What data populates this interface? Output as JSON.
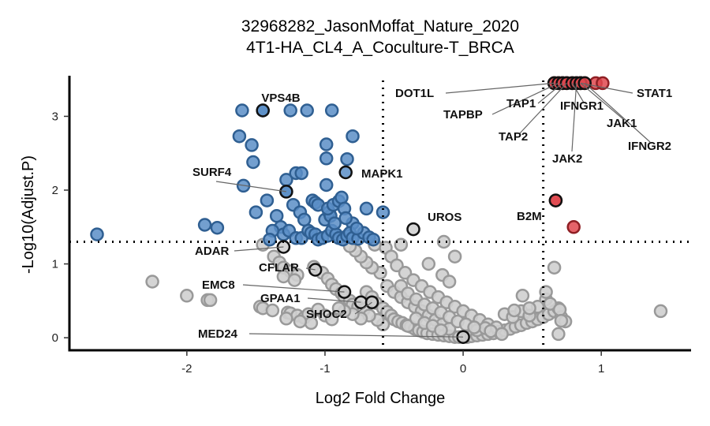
{
  "chart_data": {
    "type": "scatter",
    "title": "32968282_JasonMoffat_Nature_2020",
    "subtitle": "4T1-HA_CL4_A_Coculture-T_BRCA",
    "xlabel": "Log2 Fold Change",
    "ylabel": "-Log10(Adjust.P)",
    "xlim": [
      -2.85,
      1.65
    ],
    "ylim": [
      -0.17,
      3.55
    ],
    "x_ticks": [
      -2,
      -1,
      0,
      1
    ],
    "y_ticks": [
      0,
      1,
      2,
      3
    ],
    "thresholds": {
      "fc_low": -0.58,
      "fc_high": 0.58,
      "p": 1.3
    },
    "grid": false,
    "legend": "none",
    "colors": {
      "down": "#5b8ec7",
      "down_edge": "#2f5f92",
      "up": "#e0484f",
      "up_edge": "#8f1f24",
      "ns": "#cfcfcf",
      "ns_edge": "#999999",
      "highlight_edge": "#111111",
      "line": "#000000",
      "connector": "#666666"
    },
    "series": [
      {
        "group": "down",
        "points": [
          [
            -2.65,
            1.4
          ],
          [
            -1.87,
            1.53
          ],
          [
            -1.78,
            1.49
          ],
          [
            -1.6,
            3.08
          ],
          [
            -1.45,
            3.08
          ],
          [
            -1.25,
            3.08
          ],
          [
            -1.13,
            3.08
          ],
          [
            -0.95,
            3.08
          ],
          [
            -1.62,
            2.73
          ],
          [
            -1.53,
            2.61
          ],
          [
            -1.52,
            2.38
          ],
          [
            -1.59,
            2.06
          ],
          [
            -1.5,
            1.7
          ],
          [
            -1.42,
            1.86
          ],
          [
            -1.35,
            1.65
          ],
          [
            -1.28,
            2.14
          ],
          [
            -1.28,
            1.98
          ],
          [
            -1.21,
            2.23
          ],
          [
            -1.17,
            2.23
          ],
          [
            -1.23,
            1.8
          ],
          [
            -1.18,
            1.7
          ],
          [
            -1.09,
            1.86
          ],
          [
            -1.07,
            1.83
          ],
          [
            -1.05,
            1.8
          ],
          [
            -1.0,
            1.6
          ],
          [
            -0.97,
            1.7
          ],
          [
            -0.96,
            1.65
          ],
          [
            -0.98,
            1.75
          ],
          [
            -0.94,
            1.8
          ],
          [
            -0.9,
            1.85
          ],
          [
            -0.88,
            1.9
          ],
          [
            -0.86,
            1.75
          ],
          [
            -0.99,
            2.62
          ],
          [
            -0.99,
            2.43
          ],
          [
            -0.99,
            2.07
          ],
          [
            -0.84,
            2.42
          ],
          [
            -0.8,
            2.73
          ],
          [
            -0.8,
            1.55
          ],
          [
            -0.7,
            1.75
          ],
          [
            -0.58,
            1.7
          ],
          [
            -1.32,
            1.5
          ],
          [
            -1.3,
            1.4
          ],
          [
            -1.26,
            1.45
          ],
          [
            -1.21,
            1.35
          ],
          [
            -1.17,
            1.35
          ],
          [
            -1.12,
            1.45
          ],
          [
            -1.1,
            1.42
          ],
          [
            -1.07,
            1.4
          ],
          [
            -1.05,
            1.33
          ],
          [
            -1.02,
            1.35
          ],
          [
            -0.98,
            1.38
          ],
          [
            -0.95,
            1.45
          ],
          [
            -0.92,
            1.4
          ],
          [
            -0.9,
            1.35
          ],
          [
            -0.87,
            1.33
          ],
          [
            -0.84,
            1.38
          ],
          [
            -0.82,
            1.42
          ],
          [
            -0.8,
            1.35
          ],
          [
            -0.76,
            1.34
          ],
          [
            -0.72,
            1.42
          ],
          [
            -0.68,
            1.36
          ],
          [
            -0.65,
            1.33
          ],
          [
            -1.38,
            1.45
          ],
          [
            -1.4,
            1.33
          ],
          [
            -1.15,
            1.6
          ],
          [
            -0.93,
            1.55
          ],
          [
            -0.85,
            1.62
          ],
          [
            -0.77,
            1.48
          ]
        ]
      },
      {
        "group": "up",
        "points": [
          [
            0.66,
            3.45
          ],
          [
            0.69,
            3.45
          ],
          [
            0.72,
            3.45
          ],
          [
            0.75,
            3.45
          ],
          [
            0.79,
            3.45
          ],
          [
            0.82,
            3.45
          ],
          [
            0.85,
            3.45
          ],
          [
            0.88,
            3.45
          ],
          [
            0.96,
            3.45
          ],
          [
            1.01,
            3.45
          ],
          [
            0.67,
            1.86
          ],
          [
            0.8,
            1.5
          ]
        ]
      },
      {
        "group": "ns",
        "points": [
          [
            -2.25,
            0.76
          ],
          [
            -2.0,
            0.57
          ],
          [
            -1.85,
            0.51
          ],
          [
            -1.83,
            0.51
          ],
          [
            -1.47,
            0.42
          ],
          [
            -1.45,
            0.4
          ],
          [
            -1.38,
            0.37
          ],
          [
            -1.27,
            0.34
          ],
          [
            -1.25,
            0.33
          ],
          [
            -1.2,
            0.3
          ],
          [
            -1.15,
            0.27
          ],
          [
            -1.12,
            0.32
          ],
          [
            -1.05,
            0.38
          ],
          [
            -1.0,
            0.3
          ],
          [
            -0.95,
            0.25
          ],
          [
            -1.45,
            1.26
          ],
          [
            -1.37,
            1.1
          ],
          [
            -1.33,
            1.02
          ],
          [
            -1.3,
            0.95
          ],
          [
            -1.25,
            0.9
          ],
          [
            -1.2,
            0.85
          ],
          [
            -1.3,
            0.83
          ],
          [
            -1.22,
            0.78
          ],
          [
            -1.08,
            0.96
          ],
          [
            -1.02,
            0.88
          ],
          [
            -0.98,
            0.8
          ],
          [
            -0.95,
            0.72
          ],
          [
            -0.92,
            0.66
          ],
          [
            -0.88,
            0.6
          ],
          [
            -0.86,
            0.55
          ],
          [
            -0.82,
            0.5
          ],
          [
            -0.8,
            0.45
          ],
          [
            -0.76,
            0.42
          ],
          [
            -0.72,
            0.38
          ],
          [
            -0.7,
            0.62
          ],
          [
            -0.66,
            0.55
          ],
          [
            -0.63,
            0.47
          ],
          [
            -0.58,
            0.4
          ],
          [
            -0.55,
            0.35
          ],
          [
            -0.52,
            0.3
          ],
          [
            -0.5,
            0.25
          ],
          [
            -0.47,
            0.22
          ],
          [
            -0.44,
            0.2
          ],
          [
            -0.41,
            0.17
          ],
          [
            -0.38,
            0.15
          ],
          [
            -0.35,
            0.12
          ],
          [
            -0.32,
            0.1
          ],
          [
            -0.29,
            0.08
          ],
          [
            -0.26,
            0.06
          ],
          [
            -0.22,
            0.05
          ],
          [
            -0.18,
            0.04
          ],
          [
            -0.14,
            0.03
          ],
          [
            -0.1,
            0.02
          ],
          [
            -0.06,
            0.01
          ],
          [
            -0.03,
            0.01
          ],
          [
            0.0,
            0.01
          ],
          [
            0.03,
            0.01
          ],
          [
            0.06,
            0.02
          ],
          [
            0.1,
            0.03
          ],
          [
            0.14,
            0.04
          ],
          [
            0.18,
            0.05
          ],
          [
            0.22,
            0.06
          ],
          [
            0.26,
            0.08
          ],
          [
            0.3,
            0.1
          ],
          [
            0.34,
            0.12
          ],
          [
            0.38,
            0.15
          ],
          [
            0.42,
            0.17
          ],
          [
            0.46,
            0.2
          ],
          [
            0.5,
            0.22
          ],
          [
            0.54,
            0.25
          ],
          [
            0.58,
            0.28
          ],
          [
            0.62,
            0.32
          ],
          [
            0.66,
            0.36
          ],
          [
            0.69,
            0.4
          ],
          [
            0.71,
            0.28
          ],
          [
            0.74,
            0.22
          ],
          [
            0.6,
            0.52
          ],
          [
            0.63,
            0.46
          ],
          [
            -0.55,
            0.7
          ],
          [
            -0.5,
            0.62
          ],
          [
            -0.45,
            0.55
          ],
          [
            -0.4,
            0.48
          ],
          [
            -0.35,
            0.42
          ],
          [
            -0.3,
            0.36
          ],
          [
            -0.25,
            0.3
          ],
          [
            -0.2,
            0.24
          ],
          [
            -0.15,
            0.18
          ],
          [
            -0.1,
            0.12
          ],
          [
            -0.6,
            0.88
          ],
          [
            -0.66,
            0.95
          ],
          [
            -0.7,
            1.02
          ],
          [
            -0.74,
            1.1
          ],
          [
            -0.78,
            1.18
          ],
          [
            -0.82,
            1.24
          ],
          [
            -0.64,
            1.26
          ],
          [
            -0.56,
            1.22
          ],
          [
            -0.52,
            1.1
          ],
          [
            -0.48,
            0.98
          ],
          [
            -0.42,
            0.88
          ],
          [
            -0.36,
            0.78
          ],
          [
            -0.3,
            0.7
          ],
          [
            -0.24,
            0.62
          ],
          [
            -0.18,
            0.55
          ],
          [
            -0.12,
            0.48
          ],
          [
            -0.06,
            0.42
          ],
          [
            0.0,
            0.36
          ],
          [
            0.06,
            0.3
          ],
          [
            0.12,
            0.24
          ],
          [
            0.18,
            0.18
          ],
          [
            0.24,
            0.14
          ],
          [
            0.3,
            0.32
          ],
          [
            0.36,
            0.28
          ],
          [
            0.42,
            0.36
          ],
          [
            0.48,
            0.3
          ],
          [
            0.54,
            0.42
          ],
          [
            0.6,
            0.62
          ],
          [
            -0.14,
            1.3
          ],
          [
            -0.06,
            1.1
          ],
          [
            -0.25,
            1.0
          ],
          [
            -0.15,
            0.85
          ],
          [
            -0.1,
            0.76
          ],
          [
            0.43,
            0.57
          ],
          [
            0.37,
            0.37
          ],
          [
            0.48,
            0.4
          ],
          [
            0.66,
            0.95
          ],
          [
            0.7,
            0.38
          ],
          [
            0.71,
            0.23
          ],
          [
            0.69,
            0.05
          ],
          [
            1.43,
            0.36
          ],
          [
            -0.4,
            0.16
          ],
          [
            -0.34,
            0.26
          ],
          [
            -0.28,
            0.2
          ],
          [
            -0.22,
            0.16
          ],
          [
            -0.16,
            0.1
          ],
          [
            0.1,
            0.1
          ],
          [
            0.16,
            0.13
          ],
          [
            0.2,
            0.09
          ],
          [
            0.28,
            0.05
          ],
          [
            -0.58,
            0.18
          ],
          [
            -0.62,
            0.24
          ],
          [
            -0.68,
            0.3
          ],
          [
            -0.74,
            0.26
          ],
          [
            -0.8,
            0.32
          ],
          [
            -0.86,
            0.36
          ],
          [
            -0.9,
            0.4
          ],
          [
            -1.1,
            0.2
          ],
          [
            -1.18,
            0.22
          ],
          [
            -1.28,
            0.26
          ],
          [
            -0.45,
            0.7
          ],
          [
            -0.4,
            0.6
          ],
          [
            -0.34,
            0.52
          ],
          [
            -0.28,
            0.45
          ],
          [
            -0.22,
            0.4
          ],
          [
            -0.16,
            0.34
          ],
          [
            -0.1,
            0.28
          ],
          [
            -0.04,
            0.22
          ],
          [
            0.02,
            0.18
          ],
          [
            0.08,
            0.14
          ],
          [
            -0.45,
            1.26
          ]
        ]
      }
    ],
    "highlighted": [
      {
        "label": "VPS4B",
        "x": -1.45,
        "y": 3.08,
        "group": "down"
      },
      {
        "label": "MAPK1",
        "x": -0.85,
        "y": 2.24,
        "group": "down"
      },
      {
        "label": "SURF4",
        "x": -1.28,
        "y": 1.98,
        "group": "down"
      },
      {
        "label": "UROS",
        "x": -0.36,
        "y": 1.47,
        "group": "ns"
      },
      {
        "label": "ADAR",
        "x": -1.3,
        "y": 1.23,
        "group": "ns"
      },
      {
        "label": "CFLAR",
        "x": -1.07,
        "y": 0.92,
        "group": "ns"
      },
      {
        "label": "EMC8",
        "x": -0.86,
        "y": 0.62,
        "group": "ns"
      },
      {
        "label": "GPAA1",
        "x": -0.74,
        "y": 0.48,
        "group": "ns"
      },
      {
        "label": "SHOC2",
        "x": -0.66,
        "y": 0.48,
        "group": "ns"
      },
      {
        "label": "MED24",
        "x": 0.0,
        "y": 0.01,
        "group": "ns"
      },
      {
        "label": "DOT1L",
        "x": 0.66,
        "y": 3.45,
        "group": "up"
      },
      {
        "label": "TAPBP",
        "x": 0.69,
        "y": 3.45,
        "group": "up"
      },
      {
        "label": "TAP1",
        "x": 0.72,
        "y": 3.45,
        "group": "up"
      },
      {
        "label": "TAP2",
        "x": 0.75,
        "y": 3.45,
        "group": "up"
      },
      {
        "label": "IFNGR1",
        "x": 0.79,
        "y": 3.45,
        "group": "up"
      },
      {
        "label": "JAK2",
        "x": 0.82,
        "y": 3.45,
        "group": "up"
      },
      {
        "label": "STAT1",
        "x": 0.85,
        "y": 3.45,
        "group": "up"
      },
      {
        "label": "JAK1",
        "x": 0.85,
        "y": 3.45,
        "group": "up"
      },
      {
        "label": "IFNGR2",
        "x": 0.88,
        "y": 3.45,
        "group": "up"
      },
      {
        "label": "B2M",
        "x": 0.67,
        "y": 1.86,
        "group": "up"
      }
    ]
  }
}
